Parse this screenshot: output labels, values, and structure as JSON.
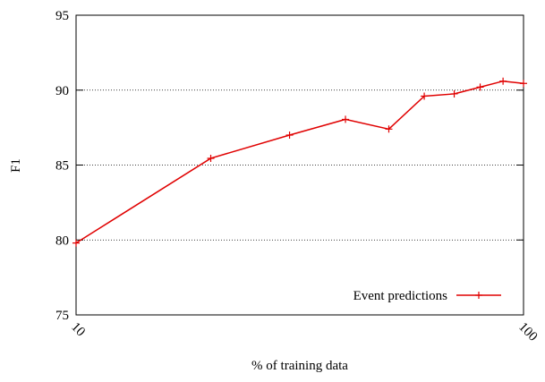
{
  "chart_data": {
    "type": "line",
    "x_label": "% of training data",
    "y_label": "F1",
    "x": [
      10,
      20,
      30,
      40,
      50,
      60,
      70,
      80,
      90,
      100
    ],
    "series": [
      {
        "name": "Event predictions",
        "color": "#e00000",
        "values": [
          79.8,
          85.45,
          87.0,
          88.05,
          87.4,
          89.6,
          89.75,
          90.2,
          90.6,
          90.45
        ]
      }
    ],
    "xlim": [
      10,
      100
    ],
    "xticks": [
      10,
      100
    ],
    "x_log": true,
    "ylim": [
      75,
      95
    ],
    "yticks": [
      75,
      80,
      85,
      90,
      95
    ],
    "grid": true,
    "legend": "bottom-right"
  }
}
